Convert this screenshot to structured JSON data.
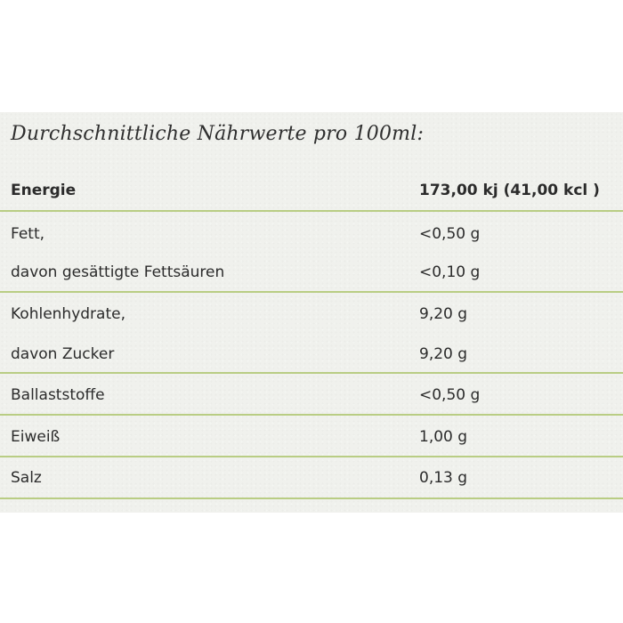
{
  "heading": "Durchschnittliche Nährwerte pro 100ml:",
  "rows": [
    {
      "label": "Energie",
      "value": "173,00 kj (41,00 kcl )"
    },
    {
      "label": "Fett,",
      "value": "<0,50 g"
    },
    {
      "label": "davon gesättigte Fettsäuren",
      "value": "<0,10 g"
    },
    {
      "label": "Kohlenhydrate,",
      "value": "9,20 g"
    },
    {
      "label": "davon Zucker",
      "value": "9,20 g"
    },
    {
      "label": "Ballaststoffe",
      "value": "<0,50 g"
    },
    {
      "label": "Eiweiß",
      "value": "1,00 g"
    },
    {
      "label": "Salz",
      "value": "0,13 g"
    }
  ],
  "colors": {
    "panel_background": "#f0f1ed",
    "divider": "#b9cd84",
    "text": "#2b2b2b"
  }
}
